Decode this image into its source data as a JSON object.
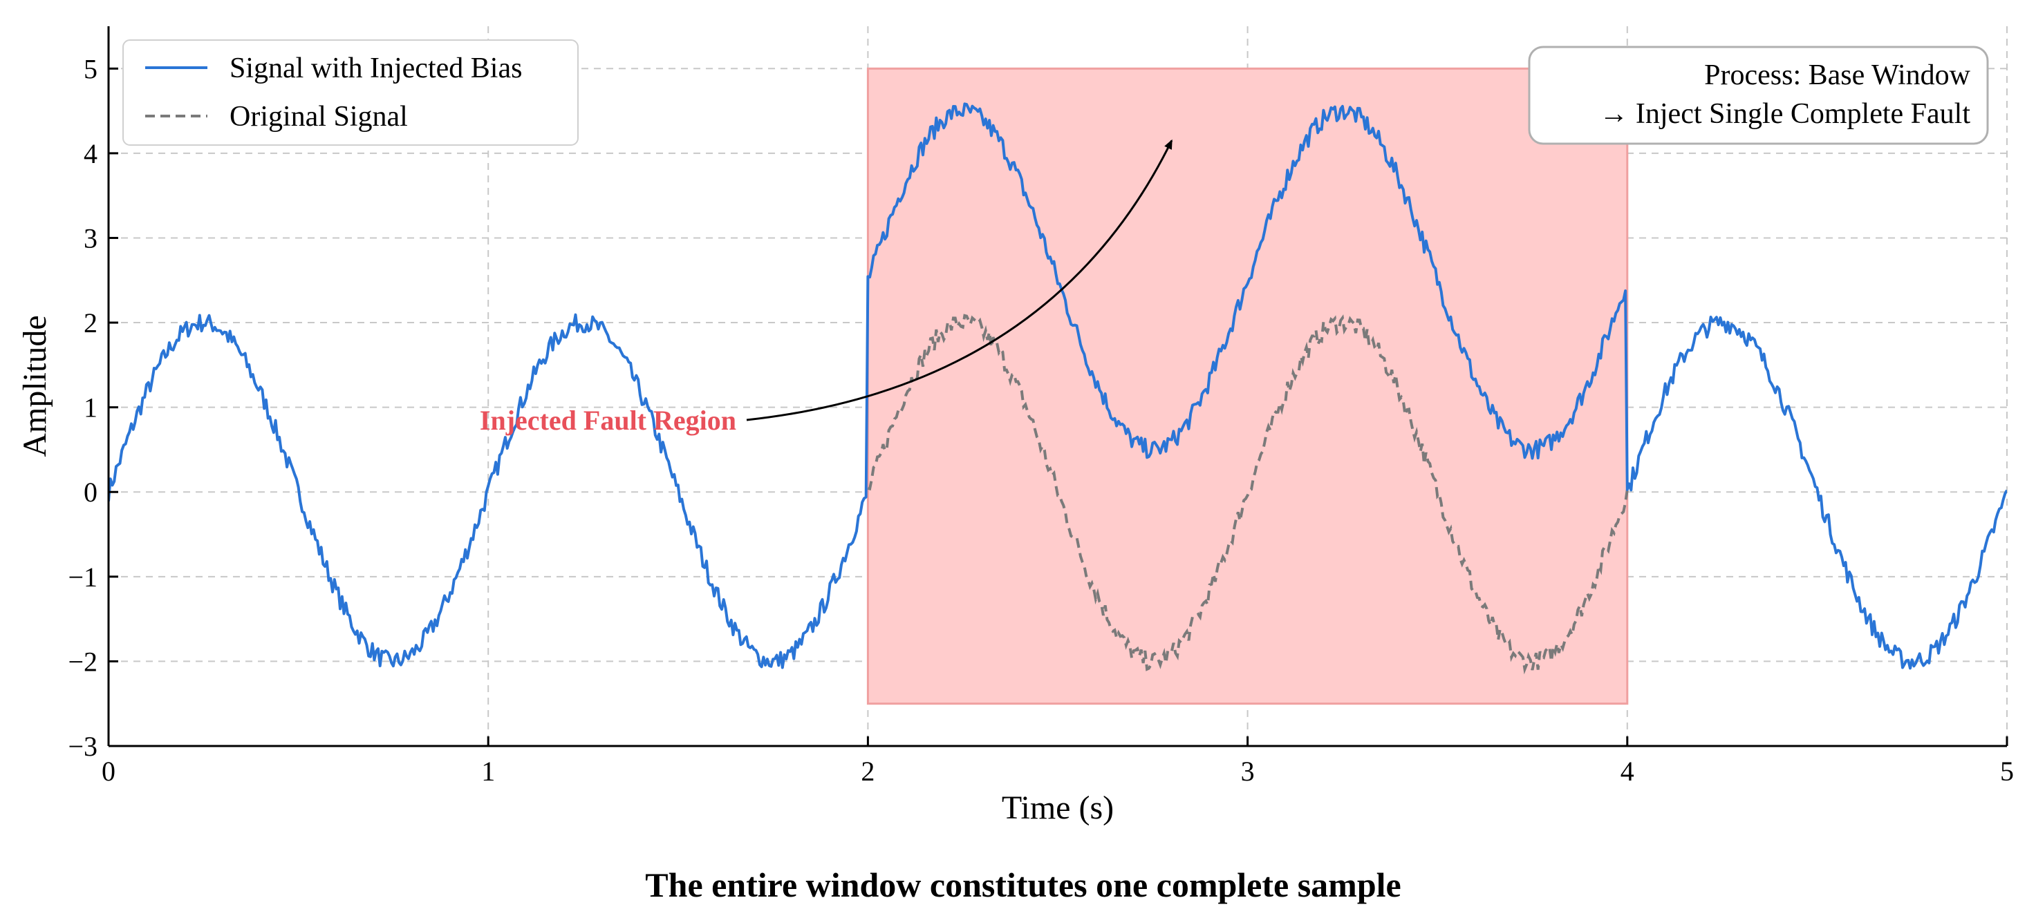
{
  "chart_data": {
    "type": "line",
    "xlabel": "Time (s)",
    "ylabel": "Amplitude",
    "xlim": [
      0,
      5
    ],
    "ylim": [
      -3,
      5.5
    ],
    "xticks": [
      "0",
      "1",
      "2",
      "3",
      "4",
      "5"
    ],
    "yticks": [
      "−3",
      "−2",
      "−1",
      "0",
      "1",
      "2",
      "3",
      "4",
      "5"
    ],
    "grid": true,
    "legend_position": "top-left",
    "caption": "The entire window constitutes one complete sample",
    "fault_region": {
      "x": [
        2,
        4
      ],
      "y": [
        -2.5,
        5
      ]
    },
    "annotation": {
      "text": "Injected Fault Region",
      "arrow_tip": [
        2.8,
        4.15
      ]
    },
    "note": {
      "line1": "Process: Base Window",
      "line2": "→ Inject Single Complete Fault"
    },
    "series": [
      {
        "name": "Signal with Injected Bias",
        "style": "solid",
        "color": "#2a75d6",
        "bias": 2.5,
        "bias_range": [
          2,
          4
        ],
        "x": [
          0,
          0.125,
          0.25,
          0.375,
          0.5,
          0.625,
          0.75,
          0.875,
          1,
          1.125,
          1.25,
          1.375,
          1.5,
          1.625,
          1.75,
          1.875,
          1.99,
          2.0,
          2.125,
          2.25,
          2.375,
          2.5,
          2.625,
          2.75,
          2.875,
          3,
          3.125,
          3.25,
          3.375,
          3.5,
          3.625,
          3.75,
          3.875,
          3.99,
          4.0,
          4.125,
          4.25,
          4.375,
          4.5,
          4.625,
          4.75,
          4.875,
          5
        ],
        "y": [
          0,
          1.41,
          2,
          1.41,
          0,
          -1.41,
          -2,
          -1.41,
          0,
          1.41,
          2,
          1.41,
          0,
          -1.41,
          -2,
          -1.41,
          -0.13,
          2.5,
          3.91,
          4.5,
          3.91,
          2.5,
          1.09,
          0.5,
          1.09,
          2.5,
          3.91,
          4.5,
          3.91,
          2.5,
          1.09,
          0.5,
          1.09,
          2.37,
          0,
          1.41,
          2,
          1.41,
          0,
          -1.41,
          -2,
          -1.41,
          -0.3
        ]
      },
      {
        "name": "Original Signal",
        "style": "dashed",
        "color": "#7a7a7a",
        "x": [
          2,
          2.125,
          2.25,
          2.375,
          2.5,
          2.625,
          2.75,
          2.875,
          3,
          3.125,
          3.25,
          3.375,
          3.5,
          3.625,
          3.75,
          3.875,
          4
        ],
        "y": [
          0,
          1.41,
          2,
          1.41,
          0,
          -1.41,
          -2,
          -1.41,
          0,
          1.41,
          2,
          1.41,
          0,
          -1.41,
          -2,
          -1.41,
          0
        ]
      }
    ]
  },
  "colors": {
    "fault_fill": "#ffcccc",
    "fault_edge": "#f0a0a0",
    "annotation": "#e8505a",
    "grid": "#c8c8c8"
  }
}
